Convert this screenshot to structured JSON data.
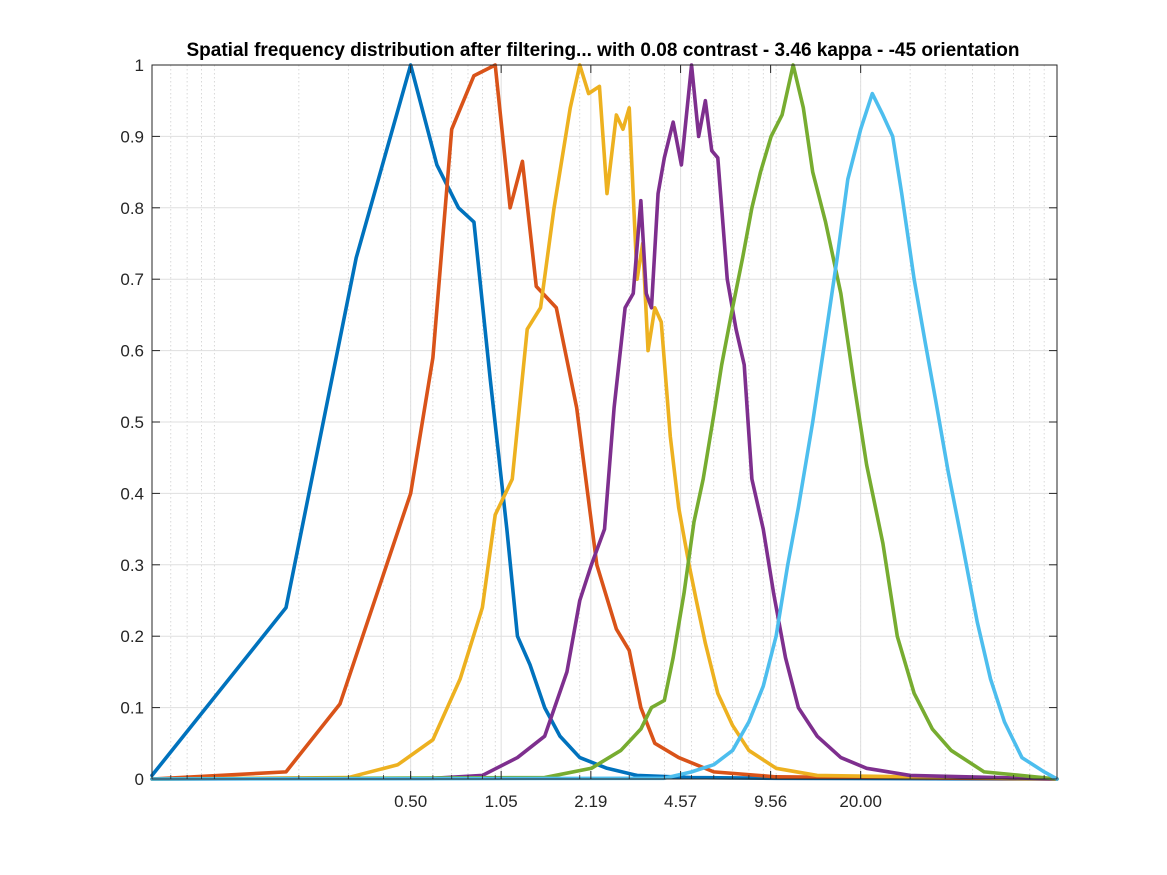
{
  "chart_data": {
    "type": "line",
    "title": "Spatial frequency distribution after filtering... with 0.08 contrast - 3.46 kappa - -45 orientation",
    "xlabel": "",
    "ylabel": "",
    "x_scale": "log",
    "xlim": [
      0.06,
      100
    ],
    "ylim": [
      0,
      1
    ],
    "grid": true,
    "x_tick_labels": [
      "0.50",
      "1.05",
      "2.19",
      "4.57",
      "9.56",
      "20.00"
    ],
    "x_tick_values": [
      0.5,
      1.05,
      2.19,
      4.57,
      9.56,
      20.0
    ],
    "y_tick_labels": [
      "0",
      "0.1",
      "0.2",
      "0.3",
      "0.4",
      "0.5",
      "0.6",
      "0.7",
      "0.8",
      "0.9",
      "1"
    ],
    "y_tick_values": [
      0,
      0.1,
      0.2,
      0.3,
      0.4,
      0.5,
      0.6,
      0.7,
      0.8,
      0.9,
      1.0
    ],
    "series": [
      {
        "color": "#0072BD",
        "points": [
          [
            0.06,
            0.005
          ],
          [
            0.18,
            0.24
          ],
          [
            0.32,
            0.73
          ],
          [
            0.5,
            1.0
          ],
          [
            0.62,
            0.86
          ],
          [
            0.74,
            0.8
          ],
          [
            0.84,
            0.78
          ],
          [
            0.96,
            0.56
          ],
          [
            1.1,
            0.35
          ],
          [
            1.2,
            0.2
          ],
          [
            1.33,
            0.16
          ],
          [
            1.5,
            0.1
          ],
          [
            1.7,
            0.06
          ],
          [
            2.0,
            0.03
          ],
          [
            2.5,
            0.015
          ],
          [
            3.2,
            0.005
          ],
          [
            5.0,
            0.002
          ],
          [
            10,
            0.001
          ],
          [
            100,
            0.0
          ]
        ]
      },
      {
        "color": "#D95319",
        "points": [
          [
            0.06,
            0.0
          ],
          [
            0.18,
            0.01
          ],
          [
            0.28,
            0.105
          ],
          [
            0.5,
            0.4
          ],
          [
            0.6,
            0.59
          ],
          [
            0.7,
            0.91
          ],
          [
            0.84,
            0.985
          ],
          [
            1.0,
            1.0
          ],
          [
            1.13,
            0.8
          ],
          [
            1.25,
            0.865
          ],
          [
            1.4,
            0.69
          ],
          [
            1.65,
            0.66
          ],
          [
            1.95,
            0.52
          ],
          [
            2.3,
            0.3
          ],
          [
            2.7,
            0.21
          ],
          [
            3.0,
            0.18
          ],
          [
            3.3,
            0.1
          ],
          [
            3.7,
            0.05
          ],
          [
            4.5,
            0.03
          ],
          [
            6.0,
            0.01
          ],
          [
            10,
            0.003
          ],
          [
            100,
            0.0
          ]
        ]
      },
      {
        "color": "#EDB120",
        "points": [
          [
            0.06,
            0.0
          ],
          [
            0.3,
            0.002
          ],
          [
            0.45,
            0.02
          ],
          [
            0.6,
            0.055
          ],
          [
            0.75,
            0.14
          ],
          [
            0.9,
            0.24
          ],
          [
            1.0,
            0.37
          ],
          [
            1.15,
            0.42
          ],
          [
            1.3,
            0.63
          ],
          [
            1.45,
            0.66
          ],
          [
            1.62,
            0.8
          ],
          [
            1.85,
            0.94
          ],
          [
            2.0,
            1.0
          ],
          [
            2.15,
            0.96
          ],
          [
            2.35,
            0.97
          ],
          [
            2.5,
            0.82
          ],
          [
            2.7,
            0.93
          ],
          [
            2.85,
            0.91
          ],
          [
            3.0,
            0.94
          ],
          [
            3.2,
            0.7
          ],
          [
            3.35,
            0.75
          ],
          [
            3.5,
            0.6
          ],
          [
            3.7,
            0.66
          ],
          [
            3.9,
            0.64
          ],
          [
            4.2,
            0.48
          ],
          [
            4.5,
            0.38
          ],
          [
            4.9,
            0.3
          ],
          [
            5.2,
            0.25
          ],
          [
            5.6,
            0.19
          ],
          [
            6.2,
            0.12
          ],
          [
            7.0,
            0.075
          ],
          [
            8.0,
            0.04
          ],
          [
            10,
            0.015
          ],
          [
            14,
            0.005
          ],
          [
            100,
            0.0
          ]
        ]
      },
      {
        "color": "#7E2F8E",
        "points": [
          [
            0.06,
            0.0
          ],
          [
            0.6,
            0.001
          ],
          [
            0.9,
            0.005
          ],
          [
            1.2,
            0.03
          ],
          [
            1.5,
            0.06
          ],
          [
            1.8,
            0.15
          ],
          [
            2.0,
            0.25
          ],
          [
            2.2,
            0.3
          ],
          [
            2.45,
            0.35
          ],
          [
            2.65,
            0.52
          ],
          [
            2.9,
            0.66
          ],
          [
            3.1,
            0.68
          ],
          [
            3.3,
            0.81
          ],
          [
            3.45,
            0.68
          ],
          [
            3.6,
            0.66
          ],
          [
            3.8,
            0.82
          ],
          [
            4.0,
            0.87
          ],
          [
            4.3,
            0.92
          ],
          [
            4.6,
            0.86
          ],
          [
            5.0,
            1.0
          ],
          [
            5.3,
            0.9
          ],
          [
            5.6,
            0.95
          ],
          [
            5.9,
            0.88
          ],
          [
            6.2,
            0.87
          ],
          [
            6.7,
            0.7
          ],
          [
            7.2,
            0.63
          ],
          [
            7.7,
            0.58
          ],
          [
            8.2,
            0.42
          ],
          [
            9.0,
            0.35
          ],
          [
            9.8,
            0.26
          ],
          [
            10.8,
            0.17
          ],
          [
            12.0,
            0.1
          ],
          [
            14,
            0.06
          ],
          [
            17,
            0.03
          ],
          [
            21,
            0.015
          ],
          [
            30,
            0.005
          ],
          [
            100,
            0.0
          ]
        ]
      },
      {
        "color": "#77AC30",
        "points": [
          [
            0.06,
            0.0
          ],
          [
            1.5,
            0.002
          ],
          [
            2.2,
            0.015
          ],
          [
            2.8,
            0.04
          ],
          [
            3.3,
            0.07
          ],
          [
            3.6,
            0.1
          ],
          [
            4.0,
            0.11
          ],
          [
            4.3,
            0.17
          ],
          [
            4.7,
            0.26
          ],
          [
            5.1,
            0.36
          ],
          [
            5.5,
            0.42
          ],
          [
            6.0,
            0.51
          ],
          [
            6.4,
            0.58
          ],
          [
            7.0,
            0.66
          ],
          [
            7.6,
            0.73
          ],
          [
            8.2,
            0.8
          ],
          [
            8.8,
            0.85
          ],
          [
            9.6,
            0.9
          ],
          [
            10.5,
            0.93
          ],
          [
            11.5,
            1.0
          ],
          [
            12.5,
            0.94
          ],
          [
            13.5,
            0.85
          ],
          [
            15,
            0.78
          ],
          [
            17,
            0.68
          ],
          [
            19,
            0.55
          ],
          [
            21,
            0.44
          ],
          [
            24,
            0.33
          ],
          [
            27,
            0.2
          ],
          [
            31,
            0.12
          ],
          [
            36,
            0.07
          ],
          [
            42,
            0.04
          ],
          [
            55,
            0.01
          ],
          [
            100,
            0.0
          ]
        ]
      },
      {
        "color": "#4DBEEE",
        "points": [
          [
            0.06,
            0.0
          ],
          [
            4.0,
            0.001
          ],
          [
            5.0,
            0.01
          ],
          [
            6.0,
            0.02
          ],
          [
            7.0,
            0.04
          ],
          [
            8.0,
            0.08
          ],
          [
            9.0,
            0.13
          ],
          [
            10,
            0.2
          ],
          [
            11,
            0.3
          ],
          [
            12,
            0.38
          ],
          [
            13.5,
            0.5
          ],
          [
            15,
            0.62
          ],
          [
            16.5,
            0.73
          ],
          [
            18,
            0.84
          ],
          [
            20,
            0.91
          ],
          [
            22,
            0.96
          ],
          [
            24,
            0.93
          ],
          [
            26,
            0.9
          ],
          [
            28,
            0.82
          ],
          [
            31,
            0.7
          ],
          [
            34,
            0.61
          ],
          [
            37,
            0.53
          ],
          [
            41,
            0.43
          ],
          [
            46,
            0.33
          ],
          [
            52,
            0.22
          ],
          [
            58,
            0.14
          ],
          [
            65,
            0.08
          ],
          [
            75,
            0.03
          ],
          [
            90,
            0.01
          ],
          [
            100,
            0.0
          ]
        ]
      }
    ]
  }
}
